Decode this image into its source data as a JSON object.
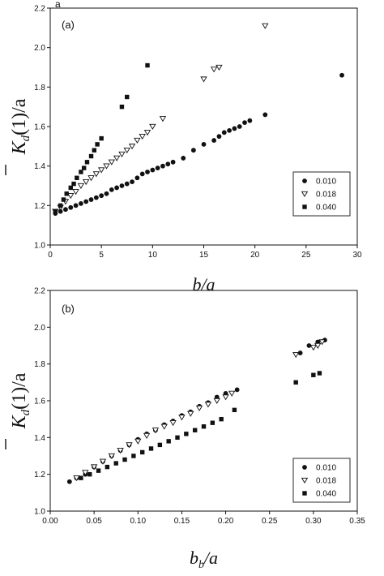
{
  "figure_tag": "a",
  "chart_data": [
    {
      "type": "scatter",
      "panel_label": "(a)",
      "xlabel": "b/a",
      "ylabel": "K̅d(1)/a",
      "ylabel_parts": {
        "main": "K",
        "sub": "d",
        "tail": "(1)/a"
      },
      "xlabel_parts": {
        "main": "b/a",
        "sub": "",
        "tail": ""
      },
      "xlim": [
        0,
        30
      ],
      "ylim": [
        1.0,
        2.2
      ],
      "xticks": [
        "0",
        "5",
        "10",
        "15",
        "20",
        "25",
        "30"
      ],
      "yticks": [
        "1.0",
        "1.2",
        "1.4",
        "1.6",
        "1.8",
        "2.0",
        "2.2"
      ],
      "grid": false,
      "legend_position": "bottom-right",
      "series": [
        {
          "name": "0.010",
          "marker": "circle",
          "x": [
            0.5,
            1.0,
            1.5,
            2.0,
            2.5,
            3.0,
            3.5,
            4.0,
            4.5,
            5.0,
            5.5,
            6.0,
            6.5,
            7.0,
            7.5,
            8.0,
            8.5,
            9.0,
            9.5,
            10.0,
            10.5,
            11.0,
            11.5,
            12.0,
            13.0,
            14.0,
            15.0,
            16.0,
            16.5,
            17.0,
            17.5,
            18.0,
            18.5,
            19.0,
            19.5,
            21.0,
            28.5
          ],
          "y": [
            1.16,
            1.17,
            1.18,
            1.19,
            1.2,
            1.21,
            1.22,
            1.23,
            1.24,
            1.25,
            1.26,
            1.28,
            1.29,
            1.3,
            1.31,
            1.32,
            1.34,
            1.36,
            1.37,
            1.38,
            1.39,
            1.4,
            1.41,
            1.42,
            1.44,
            1.48,
            1.51,
            1.53,
            1.55,
            1.57,
            1.58,
            1.59,
            1.6,
            1.62,
            1.63,
            1.66,
            1.86
          ]
        },
        {
          "name": "0.018",
          "marker": "triangle-down",
          "x": [
            0.5,
            1.0,
            1.5,
            2.0,
            2.5,
            3.0,
            3.5,
            4.0,
            4.5,
            5.0,
            5.5,
            6.0,
            6.5,
            7.0,
            7.5,
            8.0,
            8.5,
            9.0,
            9.5,
            10.0,
            11.0,
            15.0,
            16.0,
            16.5,
            21.0
          ],
          "y": [
            1.17,
            1.19,
            1.22,
            1.25,
            1.27,
            1.3,
            1.32,
            1.34,
            1.36,
            1.38,
            1.4,
            1.42,
            1.44,
            1.46,
            1.48,
            1.5,
            1.53,
            1.55,
            1.57,
            1.6,
            1.64,
            1.84,
            1.89,
            1.9,
            2.11
          ]
        },
        {
          "name": "0.040",
          "marker": "square",
          "x": [
            0.5,
            1.0,
            1.3,
            1.6,
            2.0,
            2.3,
            2.6,
            3.0,
            3.3,
            3.6,
            4.0,
            4.3,
            4.6,
            5.0,
            7.0,
            7.5,
            9.5
          ],
          "y": [
            1.17,
            1.2,
            1.23,
            1.26,
            1.29,
            1.31,
            1.34,
            1.37,
            1.39,
            1.42,
            1.45,
            1.48,
            1.51,
            1.54,
            1.7,
            1.75,
            1.91
          ]
        }
      ]
    },
    {
      "type": "scatter",
      "panel_label": "(b)",
      "xlabel": "bb/a",
      "ylabel": "K̅d(1)/a",
      "ylabel_parts": {
        "main": "K",
        "sub": "d",
        "tail": "(1)/a"
      },
      "xlabel_parts": {
        "main": "b",
        "sub": "b",
        "tail": "/a"
      },
      "xlim": [
        0.0,
        0.35
      ],
      "ylim": [
        1.0,
        2.2
      ],
      "xticks": [
        "0.00",
        "0.05",
        "0.10",
        "0.15",
        "0.20",
        "0.25",
        "0.30",
        "0.35"
      ],
      "yticks": [
        "1.0",
        "1.2",
        "1.4",
        "1.6",
        "1.8",
        "2.0",
        "2.2"
      ],
      "grid": false,
      "legend_position": "bottom-right",
      "series": [
        {
          "name": "0.010",
          "marker": "circle",
          "x": [
            0.022,
            0.03,
            0.04,
            0.05,
            0.06,
            0.07,
            0.08,
            0.09,
            0.1,
            0.11,
            0.12,
            0.13,
            0.14,
            0.15,
            0.16,
            0.17,
            0.18,
            0.19,
            0.2,
            0.213,
            0.285,
            0.295,
            0.305,
            0.313
          ],
          "y": [
            1.16,
            1.18,
            1.2,
            1.24,
            1.27,
            1.3,
            1.33,
            1.36,
            1.39,
            1.42,
            1.44,
            1.47,
            1.49,
            1.52,
            1.54,
            1.57,
            1.59,
            1.62,
            1.64,
            1.66,
            1.86,
            1.9,
            1.92,
            1.93
          ]
        },
        {
          "name": "0.018",
          "marker": "triangle-down",
          "x": [
            0.03,
            0.04,
            0.05,
            0.06,
            0.07,
            0.08,
            0.09,
            0.1,
            0.11,
            0.12,
            0.13,
            0.14,
            0.15,
            0.16,
            0.17,
            0.18,
            0.19,
            0.2,
            0.207,
            0.28,
            0.3,
            0.305,
            0.31
          ],
          "y": [
            1.18,
            1.21,
            1.24,
            1.27,
            1.3,
            1.33,
            1.36,
            1.38,
            1.41,
            1.44,
            1.46,
            1.48,
            1.51,
            1.53,
            1.56,
            1.58,
            1.6,
            1.62,
            1.64,
            1.85,
            1.89,
            1.9,
            1.92
          ]
        },
        {
          "name": "0.040",
          "marker": "square",
          "x": [
            0.035,
            0.045,
            0.055,
            0.065,
            0.075,
            0.085,
            0.095,
            0.105,
            0.115,
            0.125,
            0.135,
            0.145,
            0.155,
            0.165,
            0.175,
            0.185,
            0.195,
            0.21,
            0.28,
            0.3,
            0.307
          ],
          "y": [
            1.18,
            1.2,
            1.22,
            1.24,
            1.26,
            1.28,
            1.3,
            1.32,
            1.34,
            1.36,
            1.38,
            1.4,
            1.42,
            1.44,
            1.46,
            1.48,
            1.5,
            1.55,
            1.7,
            1.74,
            1.75
          ]
        }
      ]
    }
  ]
}
